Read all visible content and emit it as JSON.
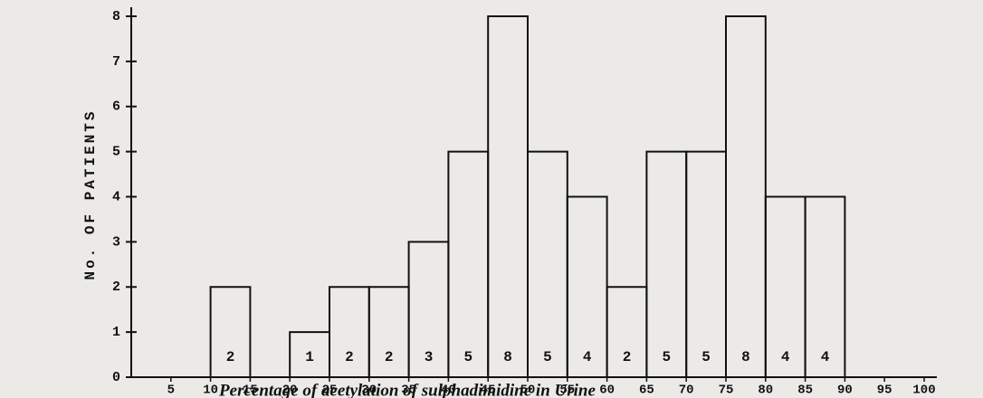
{
  "chart_data": {
    "type": "histogram",
    "xlabel": "Percentage of acetylation of sulphadimidine in Urine",
    "ylabel": "No. OF PATIENTS",
    "bins": [
      5,
      10,
      15,
      20,
      25,
      30,
      35,
      40,
      45,
      50,
      55,
      60,
      65,
      70,
      75,
      80,
      85,
      90,
      95,
      100
    ],
    "counts": [
      0,
      2,
      0,
      1,
      2,
      2,
      3,
      5,
      8,
      5,
      4,
      2,
      5,
      5,
      8,
      4,
      4,
      0,
      0
    ],
    "color": "#111111",
    "xlim": [
      0,
      100
    ],
    "xticks": [
      5,
      10,
      15,
      20,
      25,
      30,
      35,
      40,
      45,
      50,
      55,
      60,
      65,
      70,
      75,
      80,
      85,
      90,
      95,
      100
    ],
    "ylim": [
      0,
      8
    ],
    "yticks": [
      0,
      1,
      2,
      3,
      4,
      5,
      6,
      7,
      8
    ]
  }
}
